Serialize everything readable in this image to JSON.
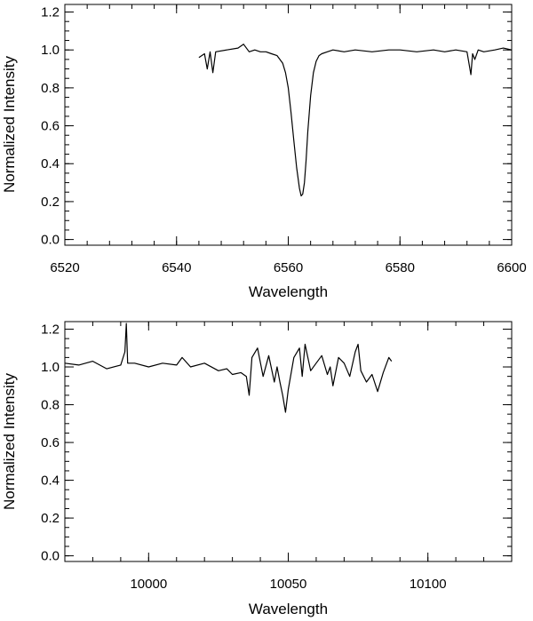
{
  "chart_data": [
    {
      "type": "line",
      "title": "",
      "xlabel": "Wavelength",
      "ylabel": "Normalized Intensity",
      "xlim": [
        6520,
        6600
      ],
      "ylim": [
        -0.03,
        1.24
      ],
      "xticks": [
        6520,
        6540,
        6560,
        6580,
        6600
      ],
      "xtick_labels": [
        "6520",
        "6540",
        "6560",
        "6580",
        "6600"
      ],
      "yticks": [
        0.0,
        0.2,
        0.4,
        0.6,
        0.8,
        1.0,
        1.2
      ],
      "ytick_labels": [
        "0.0",
        "0.2",
        "0.4",
        "0.6",
        "0.8",
        "1.0",
        "1.2"
      ],
      "grid": false,
      "series": [
        {
          "x": [
            6544.0,
            6545.0,
            6545.5,
            6546.0,
            6546.5,
            6547.0,
            6549.0,
            6551.0,
            6552.0,
            6553.0,
            6554.0,
            6555.0,
            6556.0,
            6557.0,
            6558.0,
            6559.0,
            6559.5,
            6560.0,
            6560.5,
            6561.0,
            6561.5,
            6562.0,
            6562.3,
            6562.6,
            6562.9,
            6563.2,
            6563.5,
            6564.0,
            6564.5,
            6565.0,
            6565.5,
            6566.0,
            6567.0,
            6568.0,
            6570.0,
            6572.0,
            6575.0,
            6578.0,
            6580.0,
            6583.0,
            6586.0,
            6588.0,
            6590.0,
            6592.0,
            6592.7,
            6593.0,
            6593.4,
            6594.0,
            6595.0,
            6597.0,
            6598.5,
            6600.0
          ],
          "y": [
            0.96,
            0.98,
            0.9,
            0.99,
            0.88,
            0.99,
            1.0,
            1.01,
            1.03,
            0.99,
            1.0,
            0.99,
            0.99,
            0.98,
            0.97,
            0.93,
            0.88,
            0.8,
            0.67,
            0.52,
            0.38,
            0.27,
            0.23,
            0.24,
            0.3,
            0.42,
            0.57,
            0.76,
            0.88,
            0.94,
            0.97,
            0.98,
            0.99,
            1.0,
            0.99,
            1.0,
            0.99,
            1.0,
            1.0,
            0.99,
            1.0,
            0.99,
            1.0,
            0.99,
            0.87,
            0.98,
            0.95,
            1.0,
            0.99,
            1.0,
            1.01,
            1.0
          ]
        }
      ]
    },
    {
      "type": "line",
      "title": "",
      "xlabel": "Wavelength",
      "ylabel": "Normalized Intensity",
      "xlim": [
        9970,
        10130
      ],
      "ylim": [
        -0.03,
        1.24
      ],
      "xticks": [
        10000,
        10050,
        10100
      ],
      "xtick_labels": [
        "10000",
        "10050",
        "10100"
      ],
      "yticks": [
        0.0,
        0.2,
        0.4,
        0.6,
        0.8,
        1.0,
        1.2
      ],
      "ytick_labels": [
        "0.0",
        "0.2",
        "0.4",
        "0.6",
        "0.8",
        "1.0",
        "1.2"
      ],
      "grid": false,
      "series": [
        {
          "x": [
            9970,
            9975,
            9980,
            9985,
            9990,
            9991.5,
            9992,
            9992.5,
            9995,
            10000,
            10005,
            10010,
            10012,
            10015,
            10020,
            10025,
            10028,
            10030,
            10033,
            10035,
            10036,
            10037,
            10039,
            10041,
            10043,
            10045,
            10046,
            10047,
            10048,
            10049,
            10050,
            10052,
            10054,
            10055,
            10056,
            10058,
            10060,
            10062,
            10064,
            10065,
            10066,
            10068,
            10070,
            10072,
            10074,
            10075,
            10076,
            10078,
            10080,
            10082,
            10084,
            10086,
            10087
          ],
          "y": [
            1.02,
            1.01,
            1.03,
            0.99,
            1.01,
            1.08,
            1.23,
            1.02,
            1.02,
            1.0,
            1.02,
            1.01,
            1.05,
            1.0,
            1.02,
            0.98,
            0.99,
            0.96,
            0.97,
            0.95,
            0.85,
            1.05,
            1.1,
            0.95,
            1.06,
            0.92,
            1.0,
            0.92,
            0.85,
            0.76,
            0.88,
            1.05,
            1.1,
            0.95,
            1.12,
            0.98,
            1.02,
            1.06,
            0.96,
            1.0,
            0.9,
            1.05,
            1.02,
            0.95,
            1.08,
            1.12,
            0.98,
            0.92,
            0.96,
            0.87,
            0.97,
            1.05,
            1.03
          ]
        }
      ]
    }
  ]
}
